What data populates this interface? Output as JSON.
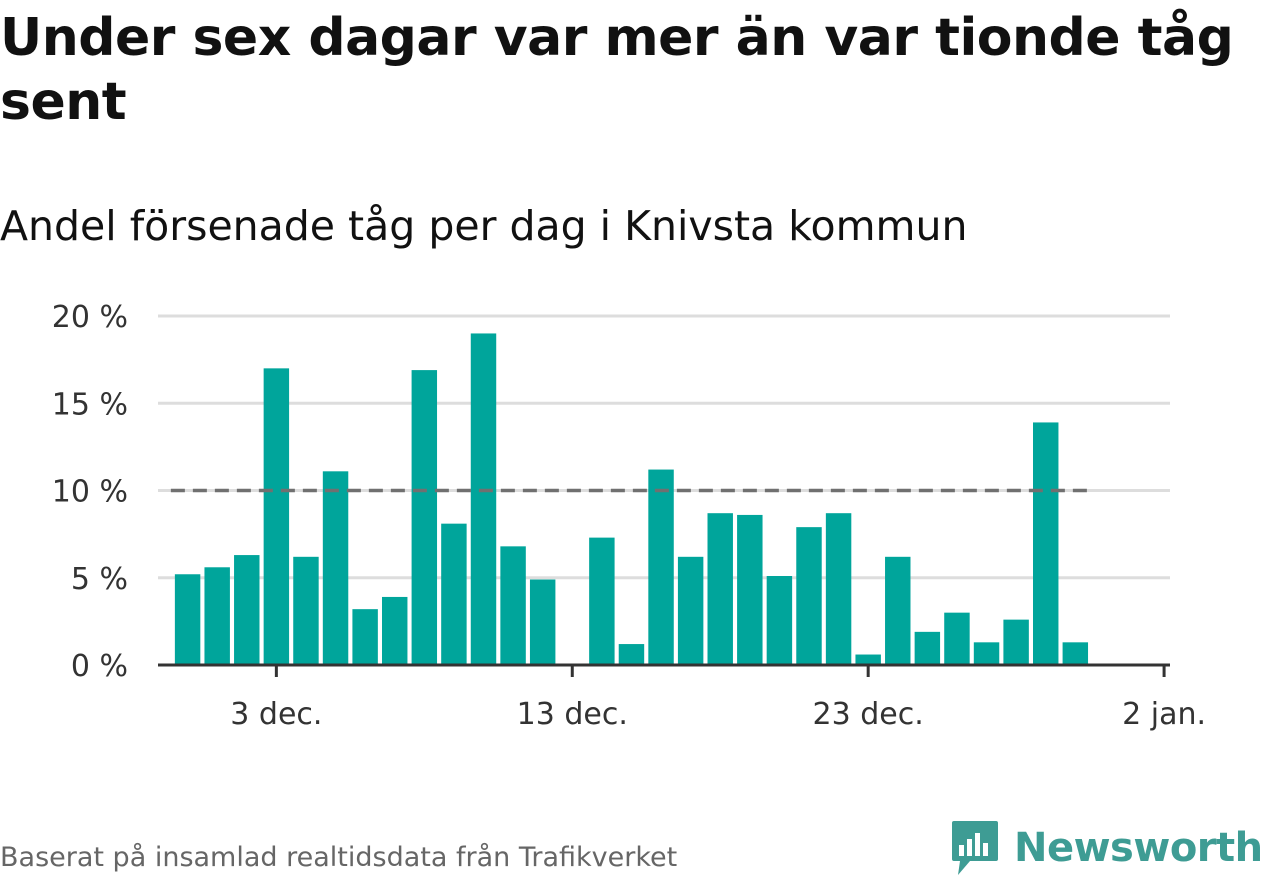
{
  "title": "Under sex dagar var mer än var tionde tåg sent",
  "subtitle": "Andel försenade tåg per dag i Knivsta kommun",
  "source": "Baserat på insamlad realtidsdata från Trafikverket",
  "brand": {
    "name": "Newsworthy",
    "icon": "newsworthy-logo-icon",
    "color": "#3e9c94"
  },
  "colors": {
    "bar": "#00a59b",
    "reference_line": "#707070",
    "grid": "#dddddd",
    "axis": "#333333"
  },
  "chart_data": {
    "type": "bar",
    "title": "Andel försenade tåg per dag i Knivsta kommun",
    "xlabel": "",
    "ylabel": "",
    "ylim": [
      0,
      20
    ],
    "y_ticks": [
      {
        "value": 0,
        "label": "0 %"
      },
      {
        "value": 5,
        "label": "5 %"
      },
      {
        "value": 10,
        "label": "10 %"
      },
      {
        "value": 15,
        "label": "15 %"
      },
      {
        "value": 20,
        "label": "20 %"
      }
    ],
    "x_ticks": [
      {
        "date": "2021-12-03",
        "label": "3 dec."
      },
      {
        "date": "2021-12-13",
        "label": "13 dec."
      },
      {
        "date": "2021-12-23",
        "label": "23 dec."
      },
      {
        "date": "2022-01-02",
        "label": "2 jan."
      }
    ],
    "x_range": [
      "2021-11-29",
      "2022-01-02"
    ],
    "reference_line": {
      "value": 10,
      "style": "dashed"
    },
    "grid": true,
    "legend": "none",
    "categories": [
      "2021-11-30",
      "2021-12-01",
      "2021-12-02",
      "2021-12-03",
      "2021-12-04",
      "2021-12-05",
      "2021-12-06",
      "2021-12-07",
      "2021-12-08",
      "2021-12-09",
      "2021-12-10",
      "2021-12-11",
      "2021-12-12",
      "2021-12-13",
      "2021-12-14",
      "2021-12-15",
      "2021-12-16",
      "2021-12-17",
      "2021-12-18",
      "2021-12-19",
      "2021-12-20",
      "2021-12-21",
      "2021-12-22",
      "2021-12-23",
      "2021-12-24",
      "2021-12-25",
      "2021-12-26",
      "2021-12-27",
      "2021-12-28",
      "2021-12-29",
      "2021-12-30",
      "2021-12-31",
      "2022-01-01"
    ],
    "values": [
      5.2,
      5.6,
      6.3,
      17.0,
      6.2,
      11.1,
      3.2,
      3.9,
      16.9,
      8.1,
      19.0,
      6.8,
      4.9,
      0,
      7.3,
      1.2,
      11.2,
      6.2,
      8.7,
      8.6,
      5.1,
      7.9,
      8.7,
      0.6,
      6.2,
      1.9,
      3.0,
      1.3,
      2.6,
      13.9,
      1.3,
      0,
      0
    ]
  }
}
